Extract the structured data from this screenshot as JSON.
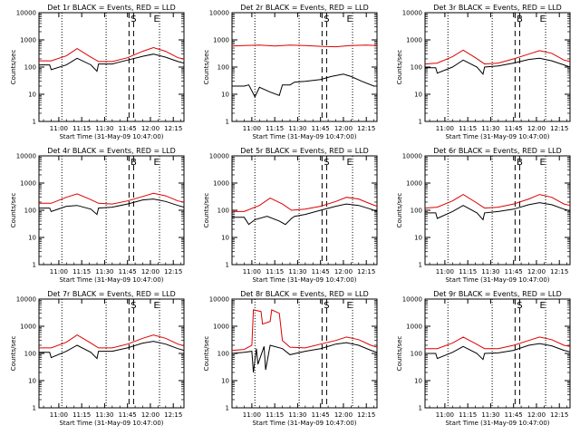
{
  "figure": {
    "background": "#ffffff",
    "colors": {
      "events": "#000000",
      "lld": "#dd0000",
      "axes": "#000000"
    }
  },
  "chart_data": [
    {
      "type": "line",
      "title": "Det 1r BLACK = Events, RED = LLD",
      "xlabel": "Start Time (31-May-09 10:47:00)",
      "ylabel": "Counts/sec",
      "x_ticks": [
        "11:00",
        "11:15",
        "11:30",
        "11:45",
        "12:00",
        "12:15"
      ],
      "y_scale": "log",
      "ylim": [
        1,
        10000
      ],
      "y_ticks": [
        "1",
        "10",
        "100",
        "1000",
        "10000"
      ],
      "grid": false,
      "markers": [
        "S",
        "E"
      ],
      "series": [
        {
          "color": "black",
          "x": [
            "10:47",
            "10:54",
            "10:55",
            "11:05",
            "11:12",
            "11:21",
            "11:25",
            "11:26",
            "11:35",
            "11:45",
            "11:55",
            "12:02",
            "12:10",
            "12:18",
            "12:22"
          ],
          "y": [
            120,
            120,
            80,
            120,
            210,
            120,
            70,
            130,
            130,
            180,
            250,
            300,
            230,
            160,
            140
          ]
        },
        {
          "color": "red",
          "x": [
            "10:47",
            "10:55",
            "11:05",
            "11:12",
            "11:20",
            "11:26",
            "11:35",
            "11:45",
            "11:55",
            "12:02",
            "12:10",
            "12:18",
            "12:22"
          ],
          "y": [
            170,
            170,
            260,
            480,
            250,
            160,
            160,
            220,
            380,
            520,
            380,
            220,
            200
          ]
        }
      ]
    },
    {
      "type": "line",
      "title": "Det 2r BLACK = Events, RED = LLD",
      "xlabel": "Start Time (31-May-09 10:47:00)",
      "ylabel": "Counts/sec",
      "x_ticks": [
        "11:00",
        "11:15",
        "11:30",
        "11:45",
        "12:00",
        "12:15"
      ],
      "y_scale": "log",
      "ylim": [
        1,
        10000
      ],
      "y_ticks": [
        "1",
        "10",
        "100",
        "1000",
        "10000"
      ],
      "grid": false,
      "markers": [
        "S",
        "E"
      ],
      "series": [
        {
          "color": "black",
          "x": [
            "10:47",
            "10:55",
            "10:58",
            "11:02",
            "11:05",
            "11:12",
            "11:18",
            "11:20",
            "11:25",
            "11:28",
            "11:35",
            "11:45",
            "11:52",
            "12:00",
            "12:05",
            "12:12",
            "12:20",
            "12:22"
          ],
          "y": [
            20,
            20,
            22,
            8,
            18,
            12,
            9,
            22,
            22,
            28,
            30,
            35,
            45,
            55,
            45,
            30,
            20,
            20
          ]
        },
        {
          "color": "red",
          "x": [
            "10:47",
            "10:55",
            "11:05",
            "11:15",
            "11:25",
            "11:35",
            "11:45",
            "11:55",
            "12:05",
            "12:15",
            "12:22"
          ],
          "y": [
            600,
            620,
            640,
            600,
            640,
            620,
            580,
            560,
            620,
            640,
            620
          ]
        }
      ]
    },
    {
      "type": "line",
      "title": "Det 3r BLACK = Events, RED = LLD",
      "xlabel": "Start Time (31-May-09 10:47:00)",
      "ylabel": "Counts/sec",
      "x_ticks": [
        "11:00",
        "11:15",
        "11:30",
        "11:45",
        "12:00",
        "12:15"
      ],
      "y_scale": "log",
      "ylim": [
        1,
        10000
      ],
      "y_ticks": [
        "1",
        "10",
        "100",
        "1000",
        "10000"
      ],
      "grid": false,
      "markers": [
        "B",
        "E"
      ],
      "series": [
        {
          "color": "black",
          "x": [
            "10:47",
            "10:54",
            "10:55",
            "11:05",
            "11:12",
            "11:21",
            "11:25",
            "11:26",
            "11:35",
            "11:45",
            "11:55",
            "12:02",
            "12:10",
            "12:18",
            "12:22"
          ],
          "y": [
            95,
            95,
            60,
            100,
            180,
            100,
            55,
            100,
            110,
            140,
            190,
            210,
            170,
            120,
            100
          ]
        },
        {
          "color": "red",
          "x": [
            "10:47",
            "10:55",
            "11:05",
            "11:12",
            "11:20",
            "11:26",
            "11:35",
            "11:45",
            "11:55",
            "12:02",
            "12:10",
            "12:18",
            "12:22"
          ],
          "y": [
            130,
            140,
            240,
            420,
            220,
            130,
            140,
            200,
            300,
            400,
            320,
            180,
            160
          ]
        }
      ]
    },
    {
      "type": "line",
      "title": "Det 4r BLACK = Events, RED = LLD",
      "xlabel": "Start Time (31-May-09 10:47:00)",
      "ylabel": "Counts/sec",
      "x_ticks": [
        "11:00",
        "11:15",
        "11:30",
        "11:45",
        "12:00",
        "12:15"
      ],
      "y_scale": "log",
      "ylim": [
        1,
        10000
      ],
      "y_ticks": [
        "1",
        "10",
        "100",
        "1000",
        "10000"
      ],
      "grid": false,
      "markers": [
        "B",
        "E"
      ],
      "series": [
        {
          "color": "black",
          "x": [
            "10:47",
            "10:54",
            "10:55",
            "11:05",
            "11:12",
            "11:21",
            "11:25",
            "11:26",
            "11:35",
            "11:45",
            "11:55",
            "12:02",
            "12:10",
            "12:18",
            "12:22"
          ],
          "y": [
            120,
            120,
            90,
            140,
            150,
            110,
            70,
            120,
            130,
            170,
            240,
            260,
            210,
            150,
            130
          ]
        },
        {
          "color": "red",
          "x": [
            "10:47",
            "10:55",
            "11:05",
            "11:12",
            "11:20",
            "11:26",
            "11:35",
            "11:45",
            "11:55",
            "12:02",
            "12:10",
            "12:18",
            "12:22"
          ],
          "y": [
            180,
            180,
            300,
            400,
            260,
            180,
            170,
            220,
            320,
            420,
            340,
            220,
            200
          ]
        }
      ]
    },
    {
      "type": "line",
      "title": "Det 5r BLACK = Events, RED = LLD",
      "xlabel": "Start Time (31-May-09 10:47:00)",
      "ylabel": "Counts/sec",
      "x_ticks": [
        "11:00",
        "11:15",
        "11:30",
        "11:45",
        "12:00",
        "12:15"
      ],
      "y_scale": "log",
      "ylim": [
        1,
        10000
      ],
      "y_ticks": [
        "1",
        "10",
        "100",
        "1000",
        "10000"
      ],
      "grid": false,
      "markers": [
        "S",
        "E"
      ],
      "series": [
        {
          "color": "black",
          "x": [
            "10:47",
            "10:55",
            "10:58",
            "11:02",
            "11:10",
            "11:18",
            "11:22",
            "11:26",
            "11:28",
            "11:35",
            "11:45",
            "11:55",
            "12:02",
            "12:10",
            "12:18",
            "12:22"
          ],
          "y": [
            55,
            55,
            30,
            45,
            60,
            40,
            30,
            50,
            60,
            70,
            100,
            140,
            170,
            150,
            110,
            90
          ]
        },
        {
          "color": "red",
          "x": [
            "10:47",
            "10:55",
            "11:05",
            "11:12",
            "11:20",
            "11:26",
            "11:35",
            "11:45",
            "11:55",
            "12:02",
            "12:10",
            "12:18",
            "12:22"
          ],
          "y": [
            90,
            90,
            150,
            280,
            170,
            100,
            110,
            140,
            210,
            300,
            260,
            170,
            140
          ]
        }
      ]
    },
    {
      "type": "line",
      "title": "Det 6r BLACK = Events, RED = LLD",
      "xlabel": "Start Time (31-May-09 10:47:00)",
      "ylabel": "Counts/sec",
      "x_ticks": [
        "11:00",
        "11:15",
        "11:30",
        "11:45",
        "12:00",
        "12:15"
      ],
      "y_scale": "log",
      "ylim": [
        1,
        10000
      ],
      "y_ticks": [
        "1",
        "10",
        "100",
        "1000",
        "10000"
      ],
      "grid": false,
      "markers": [
        "B",
        "E"
      ],
      "series": [
        {
          "color": "black",
          "x": [
            "10:47",
            "10:54",
            "10:55",
            "11:05",
            "11:12",
            "11:21",
            "11:25",
            "11:26",
            "11:35",
            "11:45",
            "11:55",
            "12:02",
            "12:10",
            "12:18",
            "12:22"
          ],
          "y": [
            80,
            80,
            50,
            90,
            150,
            80,
            45,
            80,
            90,
            110,
            160,
            190,
            160,
            110,
            95
          ]
        },
        {
          "color": "red",
          "x": [
            "10:47",
            "10:55",
            "11:05",
            "11:12",
            "11:20",
            "11:26",
            "11:35",
            "11:45",
            "11:55",
            "12:02",
            "12:10",
            "12:18",
            "12:22"
          ],
          "y": [
            120,
            130,
            220,
            380,
            200,
            120,
            130,
            170,
            260,
            380,
            300,
            170,
            150
          ]
        }
      ]
    },
    {
      "type": "line",
      "title": "Det 7r BLACK = Events, RED = LLD",
      "xlabel": "Start Time (31-May-09 10:47:00)",
      "ylabel": "Counts/sec",
      "x_ticks": [
        "11:00",
        "11:15",
        "11:30",
        "11:45",
        "12:00",
        "12:15"
      ],
      "y_scale": "log",
      "ylim": [
        1,
        10000
      ],
      "y_ticks": [
        "1",
        "10",
        "100",
        "1000",
        "10000"
      ],
      "grid": false,
      "markers": [
        "S",
        "E"
      ],
      "series": [
        {
          "color": "black",
          "x": [
            "10:47",
            "10:54",
            "10:55",
            "11:05",
            "11:12",
            "11:21",
            "11:25",
            "11:26",
            "11:35",
            "11:45",
            "11:55",
            "12:02",
            "12:10",
            "12:18",
            "12:22"
          ],
          "y": [
            110,
            110,
            70,
            120,
            200,
            110,
            65,
            120,
            120,
            160,
            240,
            280,
            220,
            150,
            130
          ]
        },
        {
          "color": "red",
          "x": [
            "10:47",
            "10:55",
            "11:05",
            "11:12",
            "11:20",
            "11:26",
            "11:35",
            "11:45",
            "11:55",
            "12:02",
            "12:10",
            "12:18",
            "12:22"
          ],
          "y": [
            160,
            160,
            260,
            480,
            260,
            160,
            160,
            220,
            360,
            480,
            360,
            220,
            190
          ]
        }
      ]
    },
    {
      "type": "line",
      "title": "Det 8r BLACK = Events, RED = LLD",
      "xlabel": "Start Time (31-May-09 10:47:00)",
      "ylabel": "Counts/sec",
      "x_ticks": [
        "11:00",
        "11:15",
        "11:30",
        "11:45",
        "12:00",
        "12:15"
      ],
      "y_scale": "log",
      "ylim": [
        1,
        10000
      ],
      "y_ticks": [
        "1",
        "10",
        "100",
        "1000",
        "10000"
      ],
      "grid": false,
      "markers": [
        "S",
        "E"
      ],
      "series": [
        {
          "color": "black",
          "x": [
            "10:47",
            "10:55",
            "11:00",
            "11:01",
            "11:03",
            "11:04",
            "11:08",
            "11:09",
            "11:12",
            "11:20",
            "11:25",
            "11:35",
            "11:45",
            "11:55",
            "12:02",
            "12:10",
            "12:18",
            "12:22"
          ],
          "y": [
            100,
            110,
            120,
            20,
            150,
            40,
            180,
            25,
            200,
            150,
            90,
            120,
            150,
            220,
            250,
            200,
            130,
            110
          ]
        },
        {
          "color": "red",
          "x": [
            "10:47",
            "10:55",
            "11:00",
            "11:01",
            "11:06",
            "11:07",
            "11:12",
            "11:13",
            "11:18",
            "11:20",
            "11:25",
            "11:35",
            "11:45",
            "11:55",
            "12:02",
            "12:10",
            "12:18",
            "12:22"
          ],
          "y": [
            130,
            140,
            200,
            4000,
            3500,
            1200,
            1500,
            4000,
            3000,
            300,
            170,
            160,
            220,
            300,
            400,
            320,
            200,
            170
          ]
        }
      ]
    },
    {
      "type": "line",
      "title": "Det 9r BLACK = Events, RED = LLD",
      "xlabel": "Start Time (31-May-09 10:47:00)",
      "ylabel": "Counts/sec",
      "x_ticks": [
        "11:00",
        "11:15",
        "11:30",
        "11:45",
        "12:00",
        "12:15"
      ],
      "y_scale": "log",
      "ylim": [
        1,
        10000
      ],
      "y_ticks": [
        "1",
        "10",
        "100",
        "1000",
        "10000"
      ],
      "grid": false,
      "markers": [
        "S",
        "E"
      ],
      "series": [
        {
          "color": "black",
          "x": [
            "10:47",
            "10:54",
            "10:55",
            "11:05",
            "11:12",
            "11:21",
            "11:25",
            "11:26",
            "11:35",
            "11:45",
            "11:55",
            "12:02",
            "12:10",
            "12:18",
            "12:22"
          ],
          "y": [
            100,
            100,
            65,
            110,
            180,
            100,
            60,
            100,
            105,
            130,
            200,
            230,
            190,
            130,
            115
          ]
        },
        {
          "color": "red",
          "x": [
            "10:47",
            "10:55",
            "11:05",
            "11:12",
            "11:20",
            "11:26",
            "11:35",
            "11:45",
            "11:55",
            "12:02",
            "12:10",
            "12:18",
            "12:22"
          ],
          "y": [
            150,
            150,
            240,
            400,
            230,
            150,
            150,
            200,
            300,
            400,
            320,
            200,
            180
          ]
        }
      ]
    }
  ]
}
